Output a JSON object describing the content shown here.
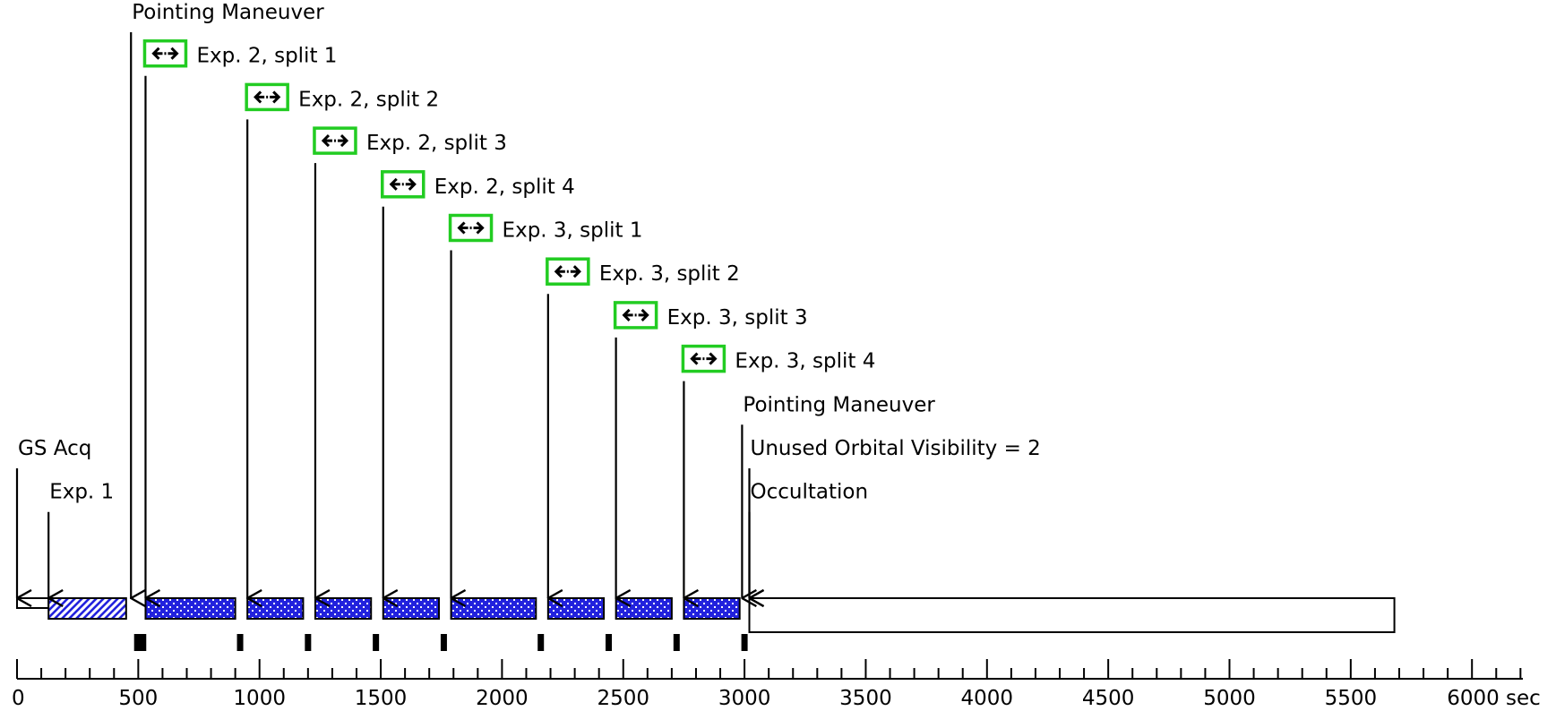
{
  "timeline": {
    "axis_unit": "sec",
    "axis_ticks": [
      {
        "value": 0,
        "label": "0"
      },
      {
        "value": 500,
        "label": "500"
      },
      {
        "value": 1000,
        "label": "1000"
      },
      {
        "value": 1500,
        "label": "1500"
      },
      {
        "value": 2000,
        "label": "2000"
      },
      {
        "value": 2500,
        "label": "2500"
      },
      {
        "value": 3000,
        "label": "3000"
      },
      {
        "value": 3500,
        "label": "3500"
      },
      {
        "value": 4000,
        "label": "4000"
      },
      {
        "value": 4500,
        "label": "4500"
      },
      {
        "value": 5000,
        "label": "5000"
      },
      {
        "value": 5500,
        "label": "5500"
      },
      {
        "value": 6000,
        "label": "6000 sec"
      }
    ],
    "colors": {
      "exposure_fill": "#2222dd",
      "split_marker_border": "#22cc22",
      "line": "#000000"
    },
    "blocks": [
      {
        "name": "gs-acq-block",
        "start": 0,
        "end": 130,
        "pattern": "none",
        "height": "thin"
      },
      {
        "name": "exp-1-block",
        "start": 130,
        "end": 450,
        "pattern": "hatched"
      },
      {
        "name": "exp-2-split-1-block",
        "start": 530,
        "end": 900,
        "pattern": "dotted"
      },
      {
        "name": "exp-2-split-2-block",
        "start": 950,
        "end": 1180,
        "pattern": "dotted"
      },
      {
        "name": "exp-2-split-3-block",
        "start": 1230,
        "end": 1460,
        "pattern": "dotted"
      },
      {
        "name": "exp-2-split-4-block",
        "start": 1510,
        "end": 1740,
        "pattern": "dotted"
      },
      {
        "name": "exp-3-split-1-block",
        "start": 1790,
        "end": 2140,
        "pattern": "dotted"
      },
      {
        "name": "exp-3-split-2-block",
        "start": 2190,
        "end": 2420,
        "pattern": "dotted"
      },
      {
        "name": "exp-3-split-3-block",
        "start": 2470,
        "end": 2700,
        "pattern": "dotted"
      },
      {
        "name": "exp-3-split-4-block",
        "start": 2750,
        "end": 2980,
        "pattern": "dotted"
      },
      {
        "name": "occultation-block",
        "start": 3020,
        "end": 5680,
        "pattern": "none",
        "height": "tall"
      }
    ],
    "markers": [
      505,
      520,
      920,
      1200,
      1480,
      1760,
      2160,
      2440,
      2720,
      3000
    ],
    "events": [
      {
        "label": "GS Acq",
        "time": 0,
        "level": 10,
        "marker": false
      },
      {
        "label": "Exp. 1",
        "time": 130,
        "level": 11,
        "marker": false
      },
      {
        "label": "Pointing Maneuver",
        "time": 470,
        "level": 0,
        "marker": false
      },
      {
        "label": "Exp. 2, split 1",
        "time": 530,
        "level": 1,
        "marker": true
      },
      {
        "label": "Exp. 2, split 2",
        "time": 950,
        "level": 2,
        "marker": true
      },
      {
        "label": "Exp. 2, split 3",
        "time": 1230,
        "level": 3,
        "marker": true
      },
      {
        "label": "Exp. 2, split 4",
        "time": 1510,
        "level": 4,
        "marker": true
      },
      {
        "label": "Exp. 3, split 1",
        "time": 1790,
        "level": 5,
        "marker": true
      },
      {
        "label": "Exp. 3, split 2",
        "time": 2190,
        "level": 6,
        "marker": true
      },
      {
        "label": "Exp. 3, split 3",
        "time": 2470,
        "level": 7,
        "marker": true
      },
      {
        "label": "Exp. 3, split 4",
        "time": 2750,
        "level": 8,
        "marker": true
      },
      {
        "label": "Pointing Maneuver",
        "time": 2990,
        "level": 9,
        "marker": false
      },
      {
        "label": "Unused Orbital Visibility = 2",
        "time": 3020,
        "level": 10,
        "marker": false
      },
      {
        "label": "Occultation",
        "time": 3020,
        "level": 11,
        "marker": false
      }
    ]
  }
}
